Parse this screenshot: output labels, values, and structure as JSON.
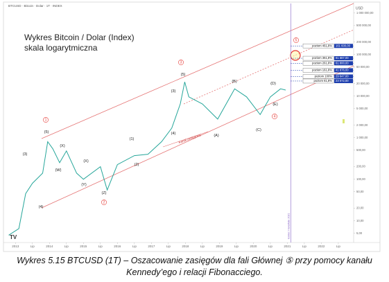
{
  "header": "BTCUSD · Bitcoin · Dolar · 1T · INDEX",
  "caption": "Wykres 5.15 BTCUSD (1T) – Oszacowanie zasięgów dla fali Głównej ⑤ przy pomocy kanału Kennedy’ego i relacji Fibonacciego.",
  "chart_data": {
    "type": "line",
    "title": "Wykres Bitcoin / Dolar (Index)",
    "subtitle": "skala logarytmiczna",
    "y_unit": "USD",
    "log_scale": true,
    "grid": false,
    "color": "#26a69a",
    "x": [
      2012.8,
      2013.1,
      2013.3,
      2013.5,
      2013.8,
      2013.95,
      2014.1,
      2014.3,
      2014.5,
      2014.8,
      2015.0,
      2015.5,
      2015.7,
      2016.0,
      2016.5,
      2016.9,
      2017.3,
      2017.6,
      2017.85,
      2017.98,
      2018.1,
      2018.5,
      2018.95,
      2019.45,
      2019.8,
      2020.2,
      2020.5,
      2020.8,
      2020.95
    ],
    "values": [
      4.5,
      6.5,
      45,
      80,
      140,
      800,
      540,
      250,
      480,
      140,
      100,
      200,
      55,
      225,
      370,
      400,
      800,
      1700,
      6500,
      22000,
      9600,
      6500,
      2800,
      15000,
      9600,
      3600,
      9600,
      15000,
      14000
    ],
    "xlim": [
      2012.75,
      2022.95
    ],
    "ylim": [
      3,
      1700000
    ],
    "xticks": [
      2013,
      {
        "value": 2013.5,
        "label": "Lip"
      },
      2014,
      {
        "value": 2014.5,
        "label": "Lip"
      },
      2015,
      {
        "value": 2015.5,
        "label": "Lip"
      },
      2016,
      {
        "value": 2016.5,
        "label": "Lip"
      },
      2017,
      {
        "value": 2017.5,
        "label": "Lip"
      },
      2018,
      {
        "value": 2018.5,
        "label": "Lip"
      },
      2019,
      {
        "value": 2019.5,
        "label": "Lip"
      },
      2020,
      {
        "value": 2020.5,
        "label": "Lip"
      },
      2021,
      {
        "value": 2021.5,
        "label": "Lip"
      },
      2022,
      {
        "value": 2022.5,
        "label": "Lip"
      }
    ],
    "yticks": [
      {
        "value": 5,
        "label": "5,00"
      },
      {
        "value": 10,
        "label": "10,00"
      },
      {
        "value": 20,
        "label": "20,00"
      },
      {
        "value": 50,
        "label": "50,00"
      },
      {
        "value": 100,
        "label": "100,00"
      },
      {
        "value": 200,
        "label": "200,00"
      },
      {
        "value": 500,
        "label": "500,00"
      },
      {
        "value": 1000,
        "label": "1 000,00"
      },
      {
        "value": 2000,
        "label": "2 000,00"
      },
      {
        "value": 5000,
        "label": "5 000,00"
      },
      {
        "value": 10000,
        "label": "10 000,00"
      },
      {
        "value": 20000,
        "label": "20 000,00"
      },
      {
        "value": 50000,
        "label": "50 000,00"
      },
      {
        "value": 100000,
        "label": "100 000,00"
      },
      {
        "value": 200000,
        "label": "200 000,00"
      },
      {
        "value": 500000,
        "label": "500 000,00"
      },
      {
        "value": 1000000,
        "label": "1 000 000,00"
      }
    ],
    "vline_x": 2021.1,
    "vline_label": "koniec I kwartału 2021",
    "channel_label": "Kanał zasięgowy",
    "fib_levels": [
      {
        "label": "poziom 461,8%",
        "value": 161600,
        "value_label": "161 600,00"
      },
      {
        "label": "poziom 361,8%",
        "value": 81687,
        "value_label": "81 687,00"
      },
      {
        "label": "poziom 261,8%",
        "value": 61800,
        "value_label": "61 800,00"
      },
      {
        "label": "poziom 161,8%",
        "value": 41876,
        "value_label": "41 876,00"
      },
      {
        "label": "poziom 100%",
        "value": 29647,
        "value_label": "29 647,00"
      },
      {
        "label": "poziom 61,8%",
        "value": 23072,
        "value_label": "23 072,00"
      }
    ],
    "wave_labels": [
      {
        "text": "(3)",
        "circled": false
      },
      {
        "text": "(5)",
        "circled": false
      },
      {
        "text": "1",
        "circled": true
      },
      {
        "text": "(X)",
        "circled": false
      },
      {
        "text": "(W)",
        "circled": false
      },
      {
        "text": "(X)",
        "circled": false
      },
      {
        "text": "(Y)",
        "circled": false
      },
      {
        "text": "(Z)",
        "circled": false
      },
      {
        "text": "2",
        "circled": true
      },
      {
        "text": "(4)",
        "circled": false
      },
      {
        "text": "(1)",
        "circled": false
      },
      {
        "text": "(2)",
        "circled": false
      },
      {
        "text": "(3)",
        "circled": false
      },
      {
        "text": "(5)",
        "circled": false
      },
      {
        "text": "3",
        "circled": true
      },
      {
        "text": "(4)",
        "circled": false
      },
      {
        "text": "(A)",
        "circled": false
      },
      {
        "text": "(B)",
        "circled": false
      },
      {
        "text": "(C)",
        "circled": false
      },
      {
        "text": "(D)",
        "circled": false
      },
      {
        "text": "(E)",
        "circled": false
      },
      {
        "text": "4",
        "circled": true
      },
      {
        "text": "5",
        "circled": true
      }
    ]
  }
}
